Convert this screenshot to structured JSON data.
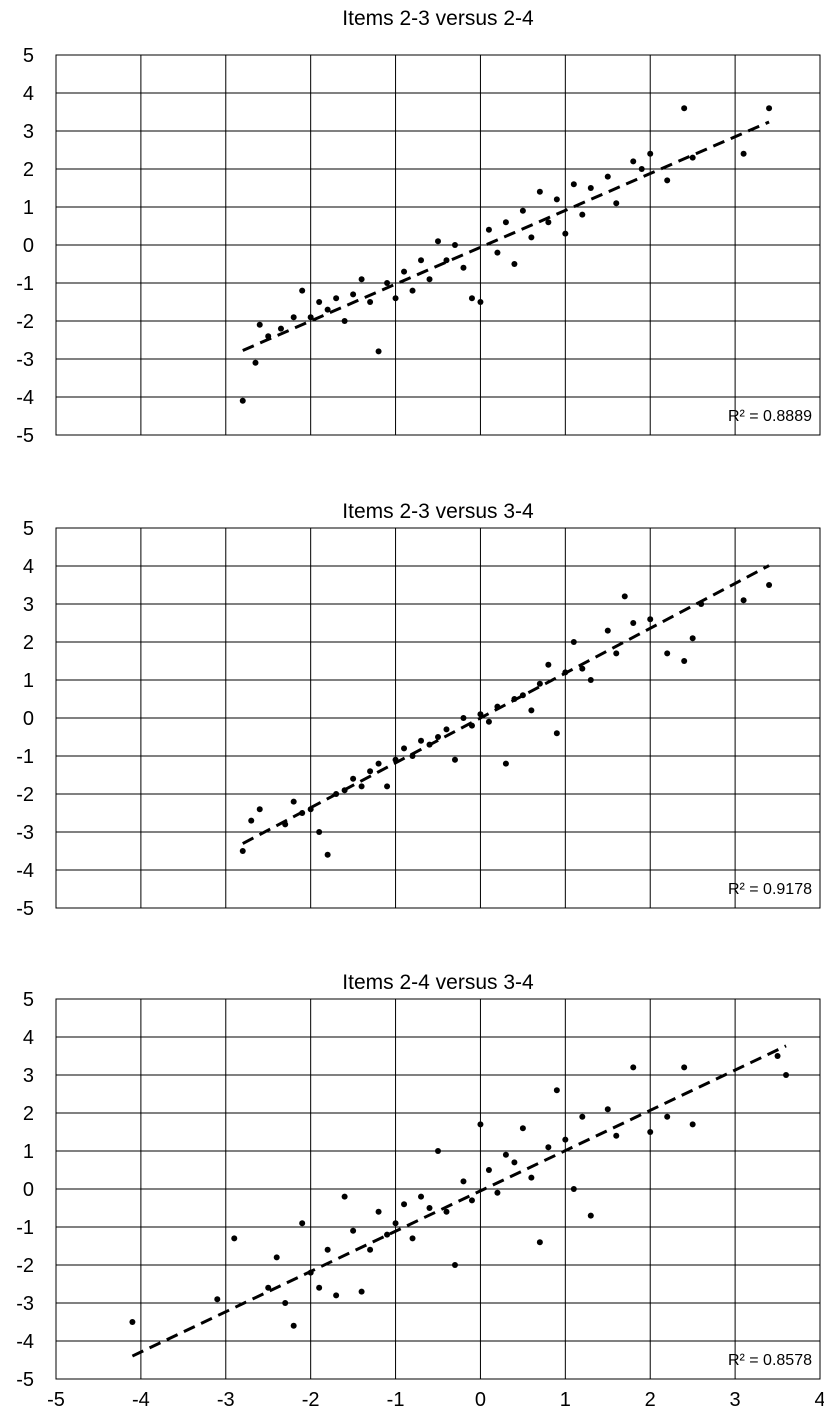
{
  "chart_data": [
    {
      "type": "scatter",
      "title": "Items 2-3 versus 2-4",
      "xlim": [
        -5,
        4
      ],
      "ylim": [
        -5,
        5
      ],
      "x_ticks": [
        "-5",
        "-4",
        "-3",
        "-2",
        "-1",
        "0",
        "1",
        "2",
        "3",
        "4"
      ],
      "y_ticks": [
        "5",
        "4",
        "3",
        "2",
        "1",
        "0",
        "-1",
        "-2",
        "-3",
        "-4",
        "-5"
      ],
      "x_tick_labels_visible": false,
      "grid": true,
      "trendline": {
        "style": "dashed",
        "slope": 0.97,
        "intercept": -0.06,
        "x_range": [
          -2.8,
          3.4
        ]
      },
      "r_squared_label": "R² = 0.8889",
      "points": [
        [
          -2.8,
          -4.1
        ],
        [
          -2.65,
          -3.1
        ],
        [
          -2.6,
          -2.1
        ],
        [
          -2.5,
          -2.4
        ],
        [
          -2.35,
          -2.2
        ],
        [
          -2.2,
          -1.9
        ],
        [
          -2.1,
          -1.2
        ],
        [
          -2.0,
          -1.9
        ],
        [
          -1.9,
          -1.5
        ],
        [
          -1.8,
          -1.7
        ],
        [
          -1.7,
          -1.4
        ],
        [
          -1.6,
          -2.0
        ],
        [
          -1.5,
          -1.3
        ],
        [
          -1.4,
          -0.9
        ],
        [
          -1.3,
          -1.5
        ],
        [
          -1.2,
          -2.8
        ],
        [
          -1.1,
          -1.0
        ],
        [
          -1.0,
          -1.4
        ],
        [
          -0.9,
          -0.7
        ],
        [
          -0.8,
          -1.2
        ],
        [
          -0.7,
          -0.4
        ],
        [
          -0.6,
          -0.9
        ],
        [
          -0.5,
          0.1
        ],
        [
          -0.4,
          -0.4
        ],
        [
          -0.3,
          0.0
        ],
        [
          -0.2,
          -0.6
        ],
        [
          -0.1,
          -1.4
        ],
        [
          0.0,
          -1.5
        ],
        [
          0.1,
          0.4
        ],
        [
          0.2,
          -0.2
        ],
        [
          0.3,
          0.6
        ],
        [
          0.4,
          -0.5
        ],
        [
          0.5,
          0.9
        ],
        [
          0.6,
          0.2
        ],
        [
          0.7,
          1.4
        ],
        [
          0.8,
          0.6
        ],
        [
          0.9,
          1.2
        ],
        [
          1.0,
          0.3
        ],
        [
          1.1,
          1.6
        ],
        [
          1.2,
          0.8
        ],
        [
          1.3,
          1.5
        ],
        [
          1.5,
          1.8
        ],
        [
          1.6,
          1.1
        ],
        [
          1.8,
          2.2
        ],
        [
          1.9,
          2.0
        ],
        [
          2.0,
          2.4
        ],
        [
          2.2,
          1.7
        ],
        [
          2.4,
          3.6
        ],
        [
          2.5,
          2.3
        ],
        [
          3.1,
          2.4
        ],
        [
          3.4,
          3.6
        ]
      ]
    },
    {
      "type": "scatter",
      "title": "Items 2-3 versus 3-4",
      "xlim": [
        -5,
        4
      ],
      "ylim": [
        -5,
        5
      ],
      "x_ticks": [
        "-5",
        "-4",
        "-3",
        "-2",
        "-1",
        "0",
        "1",
        "2",
        "3",
        "4"
      ],
      "y_ticks": [
        "5",
        "4",
        "3",
        "2",
        "1",
        "0",
        "-1",
        "-2",
        "-3",
        "-4",
        "-5"
      ],
      "x_tick_labels_visible": false,
      "grid": true,
      "trendline": {
        "style": "dashed",
        "slope": 1.18,
        "intercept": 0.0,
        "x_range": [
          -2.8,
          3.4
        ]
      },
      "r_squared_label": "R² = 0.9178",
      "points": [
        [
          -2.8,
          -3.5
        ],
        [
          -2.7,
          -2.7
        ],
        [
          -2.6,
          -2.4
        ],
        [
          -2.3,
          -2.8
        ],
        [
          -2.2,
          -2.2
        ],
        [
          -2.1,
          -2.5
        ],
        [
          -2.0,
          -2.4
        ],
        [
          -1.9,
          -3.0
        ],
        [
          -1.8,
          -3.6
        ],
        [
          -1.7,
          -2.0
        ],
        [
          -1.6,
          -1.9
        ],
        [
          -1.5,
          -1.6
        ],
        [
          -1.4,
          -1.8
        ],
        [
          -1.3,
          -1.4
        ],
        [
          -1.2,
          -1.2
        ],
        [
          -1.1,
          -1.8
        ],
        [
          -1.0,
          -1.1
        ],
        [
          -0.9,
          -0.8
        ],
        [
          -0.8,
          -1.0
        ],
        [
          -0.7,
          -0.6
        ],
        [
          -0.6,
          -0.7
        ],
        [
          -0.5,
          -0.5
        ],
        [
          -0.4,
          -0.3
        ],
        [
          -0.3,
          -1.1
        ],
        [
          -0.2,
          0.0
        ],
        [
          -0.1,
          -0.2
        ],
        [
          0.0,
          0.1
        ],
        [
          0.1,
          -0.1
        ],
        [
          0.2,
          0.3
        ],
        [
          0.3,
          -1.2
        ],
        [
          0.4,
          0.5
        ],
        [
          0.5,
          0.6
        ],
        [
          0.6,
          0.2
        ],
        [
          0.7,
          0.9
        ],
        [
          0.8,
          1.4
        ],
        [
          0.9,
          -0.4
        ],
        [
          1.0,
          1.2
        ],
        [
          1.1,
          2.0
        ],
        [
          1.2,
          1.3
        ],
        [
          1.3,
          1.0
        ],
        [
          1.5,
          2.3
        ],
        [
          1.6,
          1.7
        ],
        [
          1.7,
          3.2
        ],
        [
          1.8,
          2.5
        ],
        [
          2.0,
          2.6
        ],
        [
          2.2,
          1.7
        ],
        [
          2.4,
          1.5
        ],
        [
          2.5,
          2.1
        ],
        [
          2.6,
          3.0
        ],
        [
          3.1,
          3.1
        ],
        [
          3.4,
          3.5
        ]
      ]
    },
    {
      "type": "scatter",
      "title": "Items 2-4 versus 3-4",
      "xlim": [
        -5,
        4
      ],
      "ylim": [
        -5,
        5
      ],
      "x_ticks": [
        "-5",
        "-4",
        "-3",
        "-2",
        "-1",
        "0",
        "1",
        "2",
        "3",
        "4"
      ],
      "y_ticks": [
        "5",
        "4",
        "3",
        "2",
        "1",
        "0",
        "-1",
        "-2",
        "-3",
        "-4",
        "-5"
      ],
      "x_tick_labels_visible": true,
      "grid": true,
      "trendline": {
        "style": "dashed",
        "slope": 1.06,
        "intercept": -0.05,
        "x_range": [
          -4.1,
          3.6
        ]
      },
      "r_squared_label": "R² = 0.8578",
      "points": [
        [
          -4.1,
          -3.5
        ],
        [
          -3.1,
          -2.9
        ],
        [
          -2.9,
          -1.3
        ],
        [
          -2.5,
          -2.6
        ],
        [
          -2.4,
          -1.8
        ],
        [
          -2.3,
          -3.0
        ],
        [
          -2.2,
          -3.6
        ],
        [
          -2.1,
          -0.9
        ],
        [
          -2.0,
          -2.2
        ],
        [
          -1.9,
          -2.6
        ],
        [
          -1.8,
          -1.6
        ],
        [
          -1.7,
          -2.8
        ],
        [
          -1.6,
          -0.2
        ],
        [
          -1.5,
          -1.1
        ],
        [
          -1.4,
          -2.7
        ],
        [
          -1.3,
          -1.6
        ],
        [
          -1.2,
          -0.6
        ],
        [
          -1.1,
          -1.2
        ],
        [
          -1.0,
          -0.9
        ],
        [
          -0.9,
          -0.4
        ],
        [
          -0.8,
          -1.3
        ],
        [
          -0.7,
          -0.2
        ],
        [
          -0.6,
          -0.5
        ],
        [
          -0.5,
          1.0
        ],
        [
          -0.4,
          -0.6
        ],
        [
          -0.3,
          -2.0
        ],
        [
          -0.2,
          0.2
        ],
        [
          -0.1,
          -0.3
        ],
        [
          0.0,
          1.7
        ],
        [
          0.1,
          0.5
        ],
        [
          0.2,
          -0.1
        ],
        [
          0.3,
          0.9
        ],
        [
          0.4,
          0.7
        ],
        [
          0.5,
          1.6
        ],
        [
          0.6,
          0.3
        ],
        [
          0.7,
          -1.4
        ],
        [
          0.8,
          1.1
        ],
        [
          0.9,
          2.6
        ],
        [
          1.0,
          1.3
        ],
        [
          1.1,
          0.0
        ],
        [
          1.2,
          1.9
        ],
        [
          1.3,
          -0.7
        ],
        [
          1.5,
          2.1
        ],
        [
          1.6,
          1.4
        ],
        [
          1.8,
          3.2
        ],
        [
          2.0,
          1.5
        ],
        [
          2.2,
          1.9
        ],
        [
          2.4,
          3.2
        ],
        [
          2.5,
          1.7
        ],
        [
          3.5,
          3.5
        ],
        [
          3.6,
          3.0
        ]
      ]
    }
  ]
}
